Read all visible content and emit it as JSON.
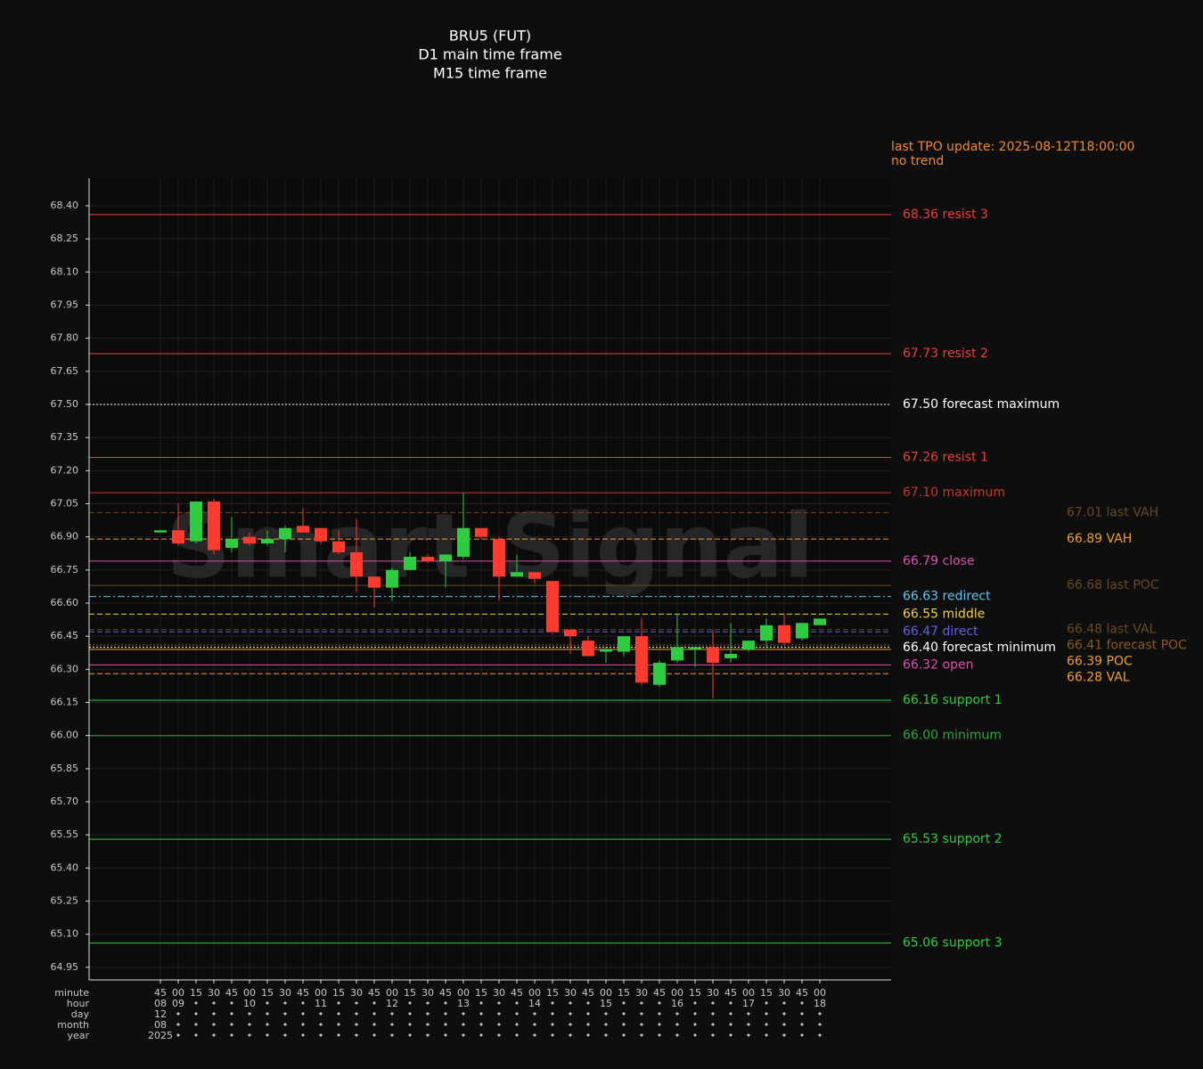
{
  "chart_data": {
    "type": "candlestick",
    "title_lines": [
      "BRU5 (FUT)",
      "D1 main time frame",
      "M15 time frame"
    ],
    "info_lines": [
      "last TPO update: 2025-08-12T18:00:00",
      "no trend"
    ],
    "watermark": "Smart Signal",
    "ylim": [
      64.893,
      68.525
    ],
    "yticks": [
      {
        "value": 64.95,
        "label": "64.95"
      },
      {
        "value": 65.1,
        "label": "65.10"
      },
      {
        "value": 65.25,
        "label": "65.25"
      },
      {
        "value": 65.4,
        "label": "65.40"
      },
      {
        "value": 65.55,
        "label": "65.55"
      },
      {
        "value": 65.7,
        "label": "65.70"
      },
      {
        "value": 65.85,
        "label": "65.85"
      },
      {
        "value": 66.0,
        "label": "66.00"
      },
      {
        "value": 66.15,
        "label": "66.15"
      },
      {
        "value": 66.3,
        "label": "66.30"
      },
      {
        "value": 66.45,
        "label": "66.45"
      },
      {
        "value": 66.6,
        "label": "66.60"
      },
      {
        "value": 66.75,
        "label": "66.75"
      },
      {
        "value": 66.9,
        "label": "66.90"
      },
      {
        "value": 67.05,
        "label": "67.05"
      },
      {
        "value": 67.2,
        "label": "67.20"
      },
      {
        "value": 67.35,
        "label": "67.35"
      },
      {
        "value": 67.5,
        "label": "67.50"
      },
      {
        "value": 67.65,
        "label": "67.65"
      },
      {
        "value": 67.8,
        "label": "67.80"
      },
      {
        "value": 67.95,
        "label": "67.95"
      },
      {
        "value": 68.1,
        "label": "68.10"
      },
      {
        "value": 68.25,
        "label": "68.25"
      },
      {
        "value": 68.4,
        "label": "68.40"
      }
    ],
    "grid": true,
    "up_color": "#2ecc40",
    "down_color": "#ff3b30",
    "open": [
      66.92,
      66.93,
      66.88,
      67.06,
      66.85,
      66.9,
      66.87,
      66.89,
      66.95,
      66.94,
      66.88,
      66.83,
      66.72,
      66.67,
      66.75,
      66.81,
      66.79,
      66.81,
      66.94,
      66.89,
      66.72,
      66.74,
      66.7,
      66.48,
      66.43,
      66.38,
      66.38,
      66.45,
      66.23,
      66.34,
      66.39,
      66.4,
      66.35,
      66.39,
      66.43,
      66.5,
      66.44,
      66.5
    ],
    "high": [
      66.93,
      67.05,
      67.06,
      67.07,
      66.99,
      66.92,
      66.93,
      66.95,
      67.03,
      66.94,
      66.93,
      66.98,
      66.72,
      66.76,
      66.83,
      66.82,
      66.82,
      67.1,
      66.94,
      66.9,
      66.82,
      66.74,
      66.7,
      66.48,
      66.45,
      66.4,
      66.45,
      66.53,
      66.34,
      66.55,
      66.4,
      66.48,
      66.51,
      66.43,
      66.53,
      66.55,
      66.51,
      66.53
    ],
    "low": [
      66.92,
      66.86,
      66.87,
      66.82,
      66.83,
      66.86,
      66.86,
      66.83,
      66.92,
      66.87,
      66.82,
      66.65,
      66.58,
      66.61,
      66.75,
      66.78,
      66.67,
      66.8,
      66.89,
      66.61,
      66.72,
      66.69,
      66.46,
      66.37,
      66.36,
      66.33,
      66.36,
      66.23,
      66.22,
      66.33,
      66.31,
      66.17,
      66.33,
      66.38,
      66.4,
      66.41,
      66.43,
      66.5
    ],
    "close": [
      66.93,
      66.87,
      67.06,
      66.84,
      66.89,
      66.87,
      66.89,
      66.94,
      66.92,
      66.88,
      66.83,
      66.72,
      66.67,
      66.75,
      66.81,
      66.79,
      66.82,
      66.94,
      66.9,
      66.72,
      66.74,
      66.71,
      66.47,
      66.45,
      66.36,
      66.39,
      66.45,
      66.24,
      66.33,
      66.4,
      66.4,
      66.33,
      66.37,
      66.43,
      66.5,
      66.42,
      66.51,
      66.53
    ],
    "x_axis_rows": [
      {
        "name": "minute",
        "labels": [
          "45",
          "00",
          "15",
          "30",
          "45",
          "00",
          "15",
          "30",
          "45",
          "00",
          "15",
          "30",
          "45",
          "00",
          "15",
          "30",
          "45",
          "00",
          "15",
          "30",
          "45",
          "00",
          "15",
          "30",
          "45",
          "00",
          "15",
          "30",
          "45",
          "00",
          "15",
          "30",
          "45",
          "00",
          "15",
          "30",
          "45",
          "00"
        ]
      },
      {
        "name": "hour",
        "labels": [
          "08",
          "09",
          "•",
          "•",
          "•",
          "10",
          "•",
          "•",
          "•",
          "11",
          "•",
          "•",
          "•",
          "12",
          "•",
          "•",
          "•",
          "13",
          "•",
          "•",
          "•",
          "14",
          "•",
          "•",
          "•",
          "15",
          "•",
          "•",
          "•",
          "16",
          "•",
          "•",
          "•",
          "17",
          "•",
          "•",
          "•",
          "18"
        ]
      },
      {
        "name": "day",
        "labels": [
          "12",
          "•",
          "•",
          "•",
          "•",
          "•",
          "•",
          "•",
          "•",
          "•",
          "•",
          "•",
          "•",
          "•",
          "•",
          "•",
          "•",
          "•",
          "•",
          "•",
          "•",
          "•",
          "•",
          "•",
          "•",
          "•",
          "•",
          "•",
          "•",
          "•",
          "•",
          "•",
          "•",
          "•",
          "•",
          "•",
          "•",
          "•"
        ]
      },
      {
        "name": "month",
        "labels": [
          "08",
          "•",
          "•",
          "•",
          "•",
          "•",
          "•",
          "•",
          "•",
          "•",
          "•",
          "•",
          "•",
          "•",
          "•",
          "•",
          "•",
          "•",
          "•",
          "•",
          "•",
          "•",
          "•",
          "•",
          "•",
          "•",
          "•",
          "•",
          "•",
          "•",
          "•",
          "•",
          "•",
          "•",
          "•",
          "•",
          "•",
          "•"
        ]
      },
      {
        "name": "year",
        "labels": [
          "2025",
          "•",
          "•",
          "•",
          "•",
          "•",
          "•",
          "•",
          "•",
          "•",
          "•",
          "•",
          "•",
          "•",
          "•",
          "•",
          "•",
          "•",
          "•",
          "•",
          "•",
          "•",
          "•",
          "•",
          "•",
          "•",
          "•",
          "•",
          "•",
          "•",
          "•",
          "•",
          "•",
          "•",
          "•",
          "•",
          "•",
          "•"
        ]
      }
    ],
    "levels": [
      {
        "value": 68.36,
        "label": "68.36 resist 3",
        "color": "#e8413c",
        "style": "solid",
        "column": 1
      },
      {
        "value": 67.73,
        "label": "67.73 resist 2",
        "color": "#e8413c",
        "style": "solid",
        "column": 1
      },
      {
        "value": 67.5,
        "label": "67.50 forecast maximum",
        "color": "#ffffff",
        "style": "dotted",
        "column": 1
      },
      {
        "value": 67.26,
        "label": "67.26 resist 1",
        "color": "#e8413c",
        "style": "solid",
        "column": 1
      },
      {
        "value": 67.1,
        "label": "67.10 maximum",
        "color": "#c8342f",
        "style": "solid",
        "column": 1
      },
      {
        "value": 67.01,
        "label": "67.01 last VAH",
        "color": "#6b4a1e",
        "style": "dashed",
        "column": 2
      },
      {
        "value": 66.89,
        "label": "66.89 VAH",
        "color": "#f0a030",
        "style": "dashed",
        "column": 2
      },
      {
        "value": 66.79,
        "label": "66.79 close",
        "color": "#e050b0",
        "style": "solid",
        "column": 1
      },
      {
        "value": 66.68,
        "label": "66.68 last POC",
        "color": "#6b4a1e",
        "style": "solid",
        "column": 2
      },
      {
        "value": 66.63,
        "label": "66.63 redirect",
        "color": "#5bc8f0",
        "style": "dashdot",
        "column": 1
      },
      {
        "value": 66.55,
        "label": "66.55 middle",
        "color": "#f0d040",
        "style": "dashed",
        "column": 1
      },
      {
        "value": 66.48,
        "label": "66.48 last VAL",
        "color": "#6b4a1e",
        "style": "dashed",
        "column": 2
      },
      {
        "value": 66.47,
        "label": "66.47 direct",
        "color": "#6060e0",
        "style": "dashed",
        "column": 1
      },
      {
        "value": 66.41,
        "label": "66.41 forecast POC",
        "color": "#8a5a22",
        "style": "dotted",
        "column": 2
      },
      {
        "value": 66.4,
        "label": "66.40 forecast minimum",
        "color": "#ffffff",
        "style": "dotted",
        "column": 1
      },
      {
        "value": 66.39,
        "label": "66.39 POC",
        "color": "#f0a030",
        "style": "solid",
        "column": 2
      },
      {
        "value": 66.32,
        "label": "66.32 open",
        "color": "#e050b0",
        "style": "solid",
        "column": 1
      },
      {
        "value": 66.28,
        "label": "66.28 VAL",
        "color": "#f0a030",
        "style": "dashed",
        "column": 2
      },
      {
        "value": 66.16,
        "label": "66.16 support 1",
        "color": "#2ecc40",
        "style": "solid",
        "column": 1
      },
      {
        "value": 66.0,
        "label": "66.00 minimum",
        "color": "#27a838",
        "style": "solid",
        "column": 1
      },
      {
        "value": 65.53,
        "label": "65.53 support 2",
        "color": "#2ecc40",
        "style": "solid",
        "column": 1
      },
      {
        "value": 65.06,
        "label": "65.06 support 3",
        "color": "#2ecc40",
        "style": "solid",
        "column": 1
      }
    ]
  }
}
